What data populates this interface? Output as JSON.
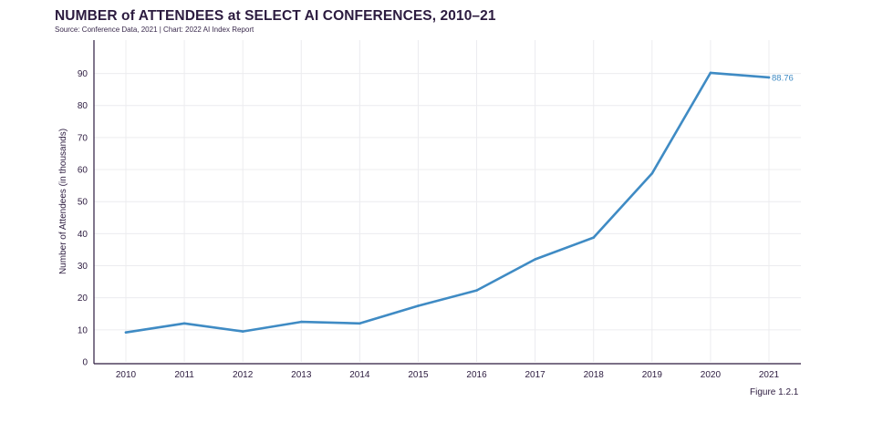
{
  "colors": {
    "line": "#3f8bc4",
    "axis": "#2c1b3f",
    "grid": "#ececef"
  },
  "chart_data": {
    "type": "line",
    "title": "NUMBER of ATTENDEES at SELECT AI CONFERENCES, 2010–21",
    "subtitle": "Source: Conference Data, 2021 | Chart: 2022 AI Index Report",
    "ylabel": "Number of Attendees (in thousands)",
    "xlabel": "",
    "x": [
      "2010",
      "2011",
      "2012",
      "2013",
      "2014",
      "2015",
      "2016",
      "2017",
      "2018",
      "2019",
      "2020",
      "2021"
    ],
    "series": [
      {
        "values": [
          9.2,
          12.0,
          9.5,
          12.5,
          12.0,
          17.5,
          22.3,
          32.0,
          38.8,
          58.8,
          90.2,
          88.76
        ]
      }
    ],
    "yticks": [
      0,
      10,
      20,
      30,
      40,
      50,
      60,
      70,
      80,
      90
    ],
    "ylim": [
      0,
      95
    ],
    "grid": true,
    "data_labels": [
      {
        "x": "2021",
        "text": "88.76"
      }
    ],
    "figure_label": "Figure 1.2.1"
  }
}
